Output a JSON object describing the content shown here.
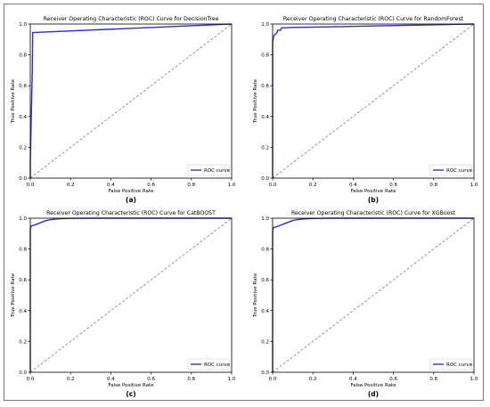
{
  "colors": {
    "roc": "#2b2fd0",
    "diagonal": "#808080",
    "axis": "#000000",
    "frame": "#7a7a7a"
  },
  "chart_data": [
    {
      "type": "line",
      "title": "Receiver Operating Characteristic (ROC) Curve for DecisionTree",
      "xlabel": "False Positive Rate",
      "ylabel": "True Positive Rate",
      "xlim": [
        0,
        1
      ],
      "ylim": [
        0,
        1
      ],
      "xticks": [
        "0.0",
        "0.2",
        "0.4",
        "0.6",
        "0.8",
        "1.0"
      ],
      "yticks": [
        "0.0",
        "0.2",
        "0.4",
        "0.6",
        "0.8",
        "1.0"
      ],
      "legend": "lower right",
      "caption": "(a)",
      "series": [
        {
          "name": "ROC curve",
          "x": [
            0,
            0,
            0.01,
            0.012,
            1.0
          ],
          "y": [
            0,
            0.1,
            0.7,
            0.945,
            1.0
          ]
        }
      ]
    },
    {
      "type": "line",
      "title": "Receiver Operating Characteristic (ROC) Curve for RandomForest",
      "xlabel": "False Positive Rate",
      "ylabel": "True Positive Rate",
      "xlim": [
        0,
        1
      ],
      "ylim": [
        0,
        1
      ],
      "xticks": [
        "0.0",
        "0.2",
        "0.4",
        "0.6",
        "0.8",
        "1.0"
      ],
      "yticks": [
        "0.0",
        "0.2",
        "0.4",
        "0.6",
        "0.8",
        "1.0"
      ],
      "legend": "lower right",
      "caption": "(b)",
      "series": [
        {
          "name": "ROC curve",
          "x": [
            0,
            0,
            0.005,
            0.01,
            0.02,
            0.025,
            0.04,
            0.045,
            0.1,
            0.3,
            0.6,
            1.0
          ],
          "y": [
            0,
            0.88,
            0.92,
            0.93,
            0.94,
            0.96,
            0.96,
            0.975,
            0.978,
            0.982,
            0.99,
            1.0
          ]
        }
      ]
    },
    {
      "type": "line",
      "title": "Receiver Operating Characteristic (ROC) Curve for CatBOOST",
      "xlabel": "False Positive Rate",
      "ylabel": "True Positive Rate",
      "xlim": [
        0,
        1
      ],
      "ylim": [
        0,
        1
      ],
      "xticks": [
        "0.0",
        "0.2",
        "0.4",
        "0.6",
        "0.8",
        "1.0"
      ],
      "yticks": [
        "0.0",
        "0.2",
        "0.4",
        "0.6",
        "0.8",
        "1.0"
      ],
      "legend": "lower right",
      "caption": "(c)",
      "series": [
        {
          "name": "ROC curve",
          "x": [
            0,
            0,
            0.005,
            0.02,
            0.04,
            0.06,
            0.08,
            0.1,
            0.12,
            0.15,
            0.2,
            0.3,
            1.0
          ],
          "y": [
            0,
            0.93,
            0.95,
            0.955,
            0.965,
            0.975,
            0.985,
            0.99,
            0.994,
            0.997,
            0.999,
            1.0,
            1.0
          ]
        }
      ]
    },
    {
      "type": "line",
      "title": "Receiver Operating Characteristic (ROC) Curve for XGBoost",
      "xlabel": "False Positive Rate",
      "ylabel": "True Positive Rate",
      "xlim": [
        0,
        1
      ],
      "ylim": [
        0,
        1
      ],
      "xticks": [
        "0.0",
        "0.2",
        "0.4",
        "0.6",
        "0.8",
        "1.0"
      ],
      "yticks": [
        "0.0",
        "0.2",
        "0.4",
        "0.6",
        "0.8",
        "1.0"
      ],
      "legend": "lower right",
      "caption": "(d)",
      "series": [
        {
          "name": "ROC curve",
          "x": [
            0,
            0,
            0.005,
            0.02,
            0.04,
            0.06,
            0.08,
            0.1,
            0.12,
            0.15,
            0.2,
            0.3,
            1.0
          ],
          "y": [
            0,
            0.92,
            0.94,
            0.945,
            0.955,
            0.965,
            0.975,
            0.985,
            0.99,
            0.995,
            0.998,
            1.0,
            1.0
          ]
        }
      ]
    }
  ]
}
